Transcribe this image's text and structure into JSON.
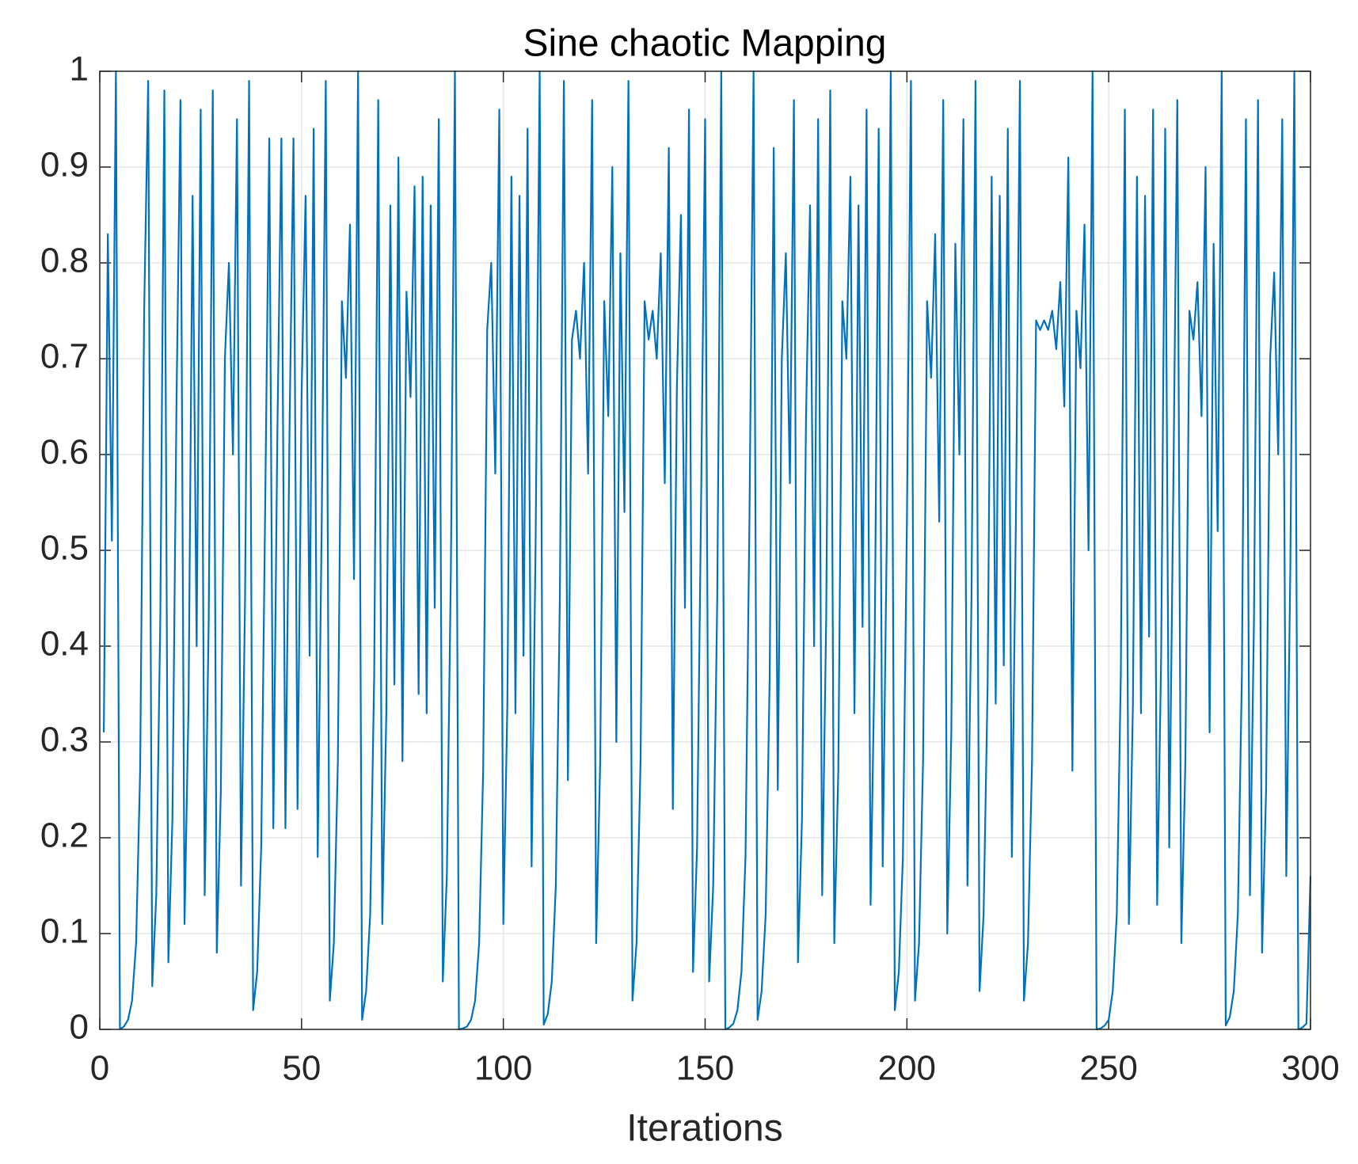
{
  "chart_data": {
    "type": "line",
    "title": "Sine chaotic Mapping",
    "x_label": "Iterations",
    "x": [
      1,
      2,
      3,
      4,
      5,
      6,
      7,
      8,
      9,
      10,
      11,
      12,
      13,
      14,
      15,
      16,
      17,
      18,
      19,
      20,
      21,
      22,
      23,
      24,
      25,
      26,
      27,
      28,
      29,
      30,
      31,
      32,
      33,
      34,
      35,
      36,
      37,
      38,
      39,
      40,
      41,
      42,
      43,
      44,
      45,
      46,
      47,
      48,
      49,
      50,
      51,
      52,
      53,
      54,
      55,
      56,
      57,
      58,
      59,
      60,
      61,
      62,
      63,
      64,
      65,
      66,
      67,
      68,
      69,
      70,
      71,
      72,
      73,
      74,
      75,
      76,
      77,
      78,
      79,
      80,
      81,
      82,
      83,
      84,
      85,
      86,
      87,
      88,
      89,
      90,
      91,
      92,
      93,
      94,
      95,
      96,
      97,
      98,
      99,
      100,
      101,
      102,
      103,
      104,
      105,
      106,
      107,
      108,
      109,
      110,
      111,
      112,
      113,
      114,
      115,
      116,
      117,
      118,
      119,
      120,
      121,
      122,
      123,
      124,
      125,
      126,
      127,
      128,
      129,
      130,
      131,
      132,
      133,
      134,
      135,
      136,
      137,
      138,
      139,
      140,
      141,
      142,
      143,
      144,
      145,
      146,
      147,
      148,
      149,
      150,
      151,
      152,
      153,
      154,
      155,
      156,
      157,
      158,
      159,
      160,
      161,
      162,
      163,
      164,
      165,
      166,
      167,
      168,
      169,
      170,
      171,
      172,
      173,
      174,
      175,
      176,
      177,
      178,
      179,
      180,
      181,
      182,
      183,
      184,
      185,
      186,
      187,
      188,
      189,
      190,
      191,
      192,
      193,
      194,
      195,
      196,
      197,
      198,
      199,
      200,
      201,
      202,
      203,
      204,
      205,
      206,
      207,
      208,
      209,
      210,
      211,
      212,
      213,
      214,
      215,
      216,
      217,
      218,
      219,
      220,
      221,
      222,
      223,
      224,
      225,
      226,
      227,
      228,
      229,
      230,
      231,
      232,
      233,
      234,
      235,
      236,
      237,
      238,
      239,
      240,
      241,
      242,
      243,
      244,
      245,
      246,
      247,
      248,
      249,
      250,
      251,
      252,
      253,
      254,
      255,
      256,
      257,
      258,
      259,
      260,
      261,
      262,
      263,
      264,
      265,
      266,
      267,
      268,
      269,
      270,
      271,
      272,
      273,
      274,
      275,
      276,
      277,
      278,
      279,
      280,
      281,
      282,
      283,
      284,
      285,
      286,
      287,
      288,
      289,
      290,
      291,
      292,
      293,
      294,
      295,
      296,
      297,
      298,
      299,
      300
    ],
    "series": [
      {
        "color": "#0072bd",
        "values": [
          0.31,
          0.83,
          0.51,
          1.0,
          0.0,
          0.003,
          0.01,
          0.03,
          0.09,
          0.27,
          0.75,
          0.99,
          0.045,
          0.14,
          0.43,
          0.98,
          0.07,
          0.22,
          0.65,
          0.97,
          0.11,
          0.34,
          0.87,
          0.4,
          0.96,
          0.14,
          0.43,
          0.98,
          0.08,
          0.25,
          0.7,
          0.8,
          0.6,
          0.95,
          0.15,
          0.45,
          0.99,
          0.02,
          0.06,
          0.19,
          0.55,
          0.93,
          0.21,
          0.62,
          0.93,
          0.21,
          0.62,
          0.93,
          0.23,
          0.66,
          0.87,
          0.39,
          0.94,
          0.18,
          0.53,
          0.99,
          0.03,
          0.09,
          0.28,
          0.76,
          0.68,
          0.84,
          0.47,
          1.0,
          0.01,
          0.04,
          0.12,
          0.37,
          0.97,
          0.11,
          0.33,
          0.86,
          0.36,
          0.91,
          0.28,
          0.77,
          0.66,
          0.88,
          0.35,
          0.89,
          0.33,
          0.86,
          0.44,
          0.95,
          0.05,
          0.16,
          0.48,
          1.0,
          0.0,
          0.001,
          0.003,
          0.01,
          0.03,
          0.09,
          0.27,
          0.73,
          0.8,
          0.58,
          0.96,
          0.11,
          0.34,
          0.89,
          0.33,
          0.87,
          0.39,
          0.94,
          0.17,
          0.51,
          1.0,
          0.005,
          0.016,
          0.05,
          0.15,
          0.45,
          0.99,
          0.26,
          0.72,
          0.75,
          0.7,
          0.8,
          0.58,
          0.97,
          0.09,
          0.28,
          0.76,
          0.64,
          0.9,
          0.3,
          0.81,
          0.54,
          0.99,
          0.03,
          0.09,
          0.28,
          0.76,
          0.72,
          0.75,
          0.7,
          0.81,
          0.57,
          0.92,
          0.23,
          0.67,
          0.85,
          0.44,
          0.96,
          0.06,
          0.19,
          0.55,
          0.95,
          0.05,
          0.15,
          0.45,
          1.0,
          0.0,
          0.002,
          0.006,
          0.02,
          0.06,
          0.18,
          0.54,
          1.0,
          0.01,
          0.04,
          0.12,
          0.37,
          0.92,
          0.25,
          0.7,
          0.81,
          0.57,
          0.97,
          0.07,
          0.22,
          0.64,
          0.86,
          0.4,
          0.95,
          0.14,
          0.43,
          0.98,
          0.09,
          0.27,
          0.76,
          0.7,
          0.89,
          0.33,
          0.86,
          0.42,
          0.96,
          0.13,
          0.39,
          0.94,
          0.17,
          0.51,
          1.0,
          0.02,
          0.06,
          0.18,
          0.53,
          0.99,
          0.03,
          0.09,
          0.28,
          0.76,
          0.68,
          0.83,
          0.53,
          0.97,
          0.1,
          0.31,
          0.82,
          0.6,
          0.95,
          0.15,
          0.45,
          0.99,
          0.04,
          0.12,
          0.36,
          0.89,
          0.34,
          0.87,
          0.38,
          0.94,
          0.18,
          0.53,
          0.99,
          0.03,
          0.09,
          0.28,
          0.74,
          0.73,
          0.74,
          0.73,
          0.75,
          0.71,
          0.78,
          0.65,
          0.91,
          0.27,
          0.75,
          0.69,
          0.84,
          0.5,
          1.0,
          0.0,
          0.001,
          0.004,
          0.01,
          0.04,
          0.12,
          0.37,
          0.96,
          0.11,
          0.34,
          0.89,
          0.33,
          0.87,
          0.41,
          0.96,
          0.13,
          0.39,
          0.94,
          0.19,
          0.56,
          0.97,
          0.09,
          0.28,
          0.75,
          0.72,
          0.78,
          0.64,
          0.9,
          0.31,
          0.82,
          0.52,
          1.0,
          0.004,
          0.013,
          0.04,
          0.12,
          0.37,
          0.95,
          0.14,
          0.43,
          0.97,
          0.08,
          0.25,
          0.7,
          0.79,
          0.6,
          0.95,
          0.16,
          0.48,
          1.0,
          0.0,
          0.002,
          0.006,
          0.16
        ]
      }
    ],
    "xlim": [
      0,
      300
    ],
    "xticks": [
      0,
      50,
      100,
      150,
      200,
      250,
      300
    ],
    "ylim": [
      0,
      1
    ],
    "yticks": [
      0,
      0.1,
      0.2,
      0.3,
      0.4,
      0.5,
      0.6,
      0.7,
      0.8,
      0.9,
      1
    ],
    "grid": true
  }
}
